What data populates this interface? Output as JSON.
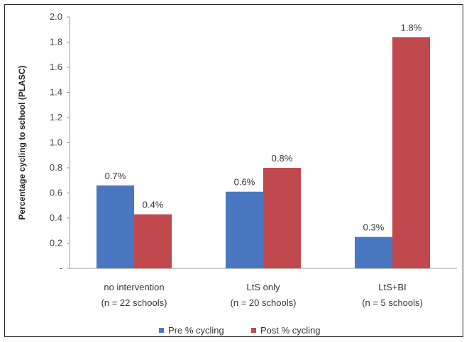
{
  "chart_data": {
    "type": "bar",
    "categories": [
      [
        "no intervention",
        "(n = 22 schools)"
      ],
      [
        "LtS only",
        "(n = 20 schools)"
      ],
      [
        "LtS+BI",
        "(n = 5 schools)"
      ]
    ],
    "series": [
      {
        "name": "Pre % cycling",
        "color": "#4a78c0",
        "values": [
          0.66,
          0.61,
          0.25
        ],
        "labels": [
          "0.7%",
          "0.6%",
          "0.3%"
        ]
      },
      {
        "name": "Post % cycling",
        "color": "#c0494e",
        "values": [
          0.43,
          0.8,
          1.84
        ],
        "labels": [
          "0.4%",
          "0.8%",
          "1.8%"
        ]
      }
    ],
    "ylabel": "Percentage cycling to school (PLASC)",
    "ylim": [
      0,
      2.0
    ],
    "yticks": [
      {
        "value": 0,
        "label": "-"
      },
      {
        "value": 0.2,
        "label": "0.2"
      },
      {
        "value": 0.4,
        "label": "0.4"
      },
      {
        "value": 0.6,
        "label": "0.6"
      },
      {
        "value": 0.8,
        "label": "0.8"
      },
      {
        "value": 1.0,
        "label": "1.0"
      },
      {
        "value": 1.2,
        "label": "1.2"
      },
      {
        "value": 1.4,
        "label": "1.4"
      },
      {
        "value": 1.6,
        "label": "1.6"
      },
      {
        "value": 1.8,
        "label": "1.8"
      },
      {
        "value": 2.0,
        "label": "2.0"
      }
    ],
    "grid": false,
    "legend": "bottom"
  }
}
